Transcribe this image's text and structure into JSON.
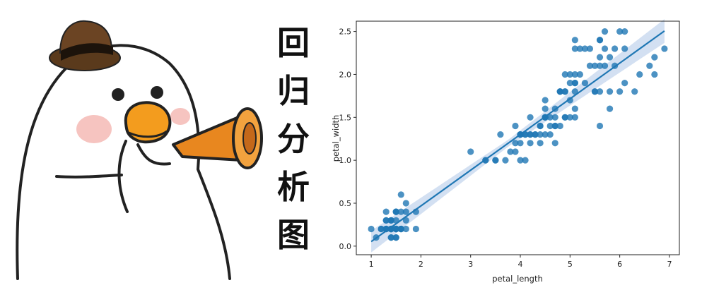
{
  "poster": {
    "vertical_title": [
      "回",
      "归",
      "分",
      "析",
      "图"
    ]
  },
  "colors": {
    "point": "#1f77b4",
    "line": "#1f77b4",
    "band": "#aec7e8",
    "hat": "#5a3a1c",
    "beak": "#f39c1e",
    "megaphone": "#e8871f",
    "blush": "#f6c4c0"
  },
  "chart_data": {
    "type": "scatter",
    "xlabel": "petal_length",
    "ylabel": "petal_width",
    "xlim": [
      0.7,
      7.2
    ],
    "ylim": [
      -0.1,
      2.62
    ],
    "xticks": [
      1,
      2,
      3,
      4,
      5,
      6,
      7
    ],
    "yticks": [
      0.0,
      0.5,
      1.0,
      1.5,
      2.0,
      2.5
    ],
    "grid": false,
    "regression": {
      "slope": 0.4158,
      "intercept": -0.3631,
      "x_range": [
        1.0,
        6.9
      ]
    },
    "x": [
      1.4,
      1.4,
      1.3,
      1.5,
      1.4,
      1.7,
      1.4,
      1.5,
      1.4,
      1.5,
      1.5,
      1.6,
      1.4,
      1.1,
      1.2,
      1.5,
      1.3,
      1.4,
      1.7,
      1.5,
      1.7,
      1.5,
      1.0,
      1.7,
      1.9,
      1.6,
      1.6,
      1.5,
      1.4,
      1.6,
      1.6,
      1.5,
      1.5,
      1.4,
      1.5,
      1.2,
      1.3,
      1.4,
      1.3,
      1.5,
      1.3,
      1.3,
      1.3,
      1.6,
      1.9,
      1.4,
      1.6,
      1.4,
      1.5,
      1.4,
      4.7,
      4.5,
      4.9,
      4.0,
      4.6,
      4.5,
      4.7,
      3.3,
      4.6,
      3.9,
      3.5,
      4.2,
      4.0,
      4.7,
      3.6,
      4.4,
      4.5,
      4.1,
      4.5,
      3.9,
      4.8,
      4.0,
      4.9,
      4.7,
      4.3,
      4.4,
      4.8,
      5.0,
      4.5,
      3.5,
      3.8,
      3.7,
      3.9,
      5.1,
      4.5,
      4.5,
      4.7,
      4.4,
      4.1,
      4.0,
      4.4,
      4.6,
      4.0,
      3.3,
      4.2,
      4.2,
      4.2,
      4.3,
      3.0,
      4.1,
      6.0,
      5.1,
      5.9,
      5.6,
      5.8,
      6.6,
      4.5,
      6.3,
      5.8,
      6.1,
      5.1,
      5.3,
      5.5,
      5.0,
      5.1,
      5.3,
      5.5,
      6.7,
      6.9,
      5.0,
      5.7,
      4.9,
      6.7,
      4.9,
      5.7,
      6.0,
      4.8,
      4.9,
      5.6,
      5.8,
      6.1,
      6.4,
      5.6,
      5.1,
      5.6,
      6.1,
      5.6,
      5.5,
      4.8,
      5.4,
      5.6,
      5.1,
      5.1,
      5.9,
      5.7,
      5.2,
      5.0,
      5.2,
      5.4,
      5.1
    ],
    "y": [
      0.2,
      0.2,
      0.2,
      0.2,
      0.2,
      0.4,
      0.3,
      0.2,
      0.2,
      0.1,
      0.2,
      0.2,
      0.1,
      0.1,
      0.2,
      0.4,
      0.4,
      0.3,
      0.3,
      0.3,
      0.2,
      0.4,
      0.2,
      0.5,
      0.2,
      0.2,
      0.4,
      0.2,
      0.2,
      0.2,
      0.2,
      0.4,
      0.1,
      0.2,
      0.2,
      0.2,
      0.2,
      0.1,
      0.2,
      0.2,
      0.3,
      0.3,
      0.2,
      0.6,
      0.4,
      0.3,
      0.2,
      0.2,
      0.2,
      0.2,
      1.4,
      1.5,
      1.5,
      1.3,
      1.5,
      1.3,
      1.6,
      1.0,
      1.3,
      1.4,
      1.0,
      1.5,
      1.0,
      1.4,
      1.3,
      1.4,
      1.5,
      1.0,
      1.5,
      1.1,
      1.8,
      1.3,
      1.5,
      1.2,
      1.3,
      1.4,
      1.4,
      1.7,
      1.5,
      1.0,
      1.1,
      1.0,
      1.2,
      1.6,
      1.5,
      1.6,
      1.5,
      1.3,
      1.3,
      1.3,
      1.2,
      1.4,
      1.2,
      1.0,
      1.3,
      1.2,
      1.3,
      1.3,
      1.1,
      1.3,
      2.5,
      1.9,
      2.1,
      1.8,
      2.2,
      2.1,
      1.7,
      1.8,
      1.8,
      2.5,
      2.0,
      1.9,
      2.1,
      2.0,
      2.4,
      2.3,
      1.8,
      2.2,
      2.3,
      1.5,
      2.3,
      2.0,
      2.0,
      1.8,
      2.1,
      1.8,
      1.8,
      1.8,
      2.1,
      1.6,
      1.9,
      2.0,
      2.2,
      1.5,
      1.4,
      2.3,
      2.4,
      1.8,
      1.8,
      2.1,
      2.4,
      2.3,
      1.9,
      2.3,
      2.5,
      2.3,
      1.9,
      2.0,
      2.3,
      1.8
    ]
  }
}
